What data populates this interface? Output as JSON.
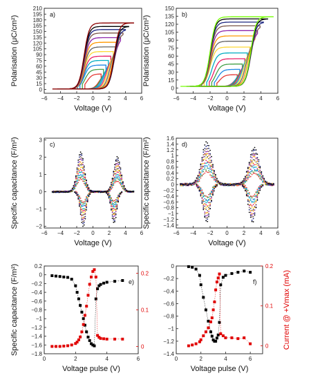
{
  "chart_data": [
    {
      "id": "a",
      "type": "line",
      "panel_label": "a)",
      "xlabel": "Voltage (V)",
      "ylabel": "Polarisation (μC/cm²)",
      "xlim": [
        -6,
        6
      ],
      "ylim": [
        -10,
        210
      ],
      "xticks": [
        -6,
        -4,
        -2,
        0,
        2,
        4,
        6
      ],
      "yticks": [
        0,
        15,
        30,
        45,
        60,
        75,
        90,
        105,
        120,
        135,
        150,
        165,
        180,
        195,
        210
      ],
      "loops": [
        {
          "vmax": 1.0,
          "pmax": 40,
          "color": "#e53935"
        },
        {
          "vmax": 1.3,
          "pmax": 52,
          "color": "#43a047"
        },
        {
          "vmax": 1.6,
          "pmax": 63,
          "color": "#1e88e5"
        },
        {
          "vmax": 1.9,
          "pmax": 75,
          "color": "#00acc1"
        },
        {
          "vmax": 2.2,
          "pmax": 86,
          "color": "#e91e63"
        },
        {
          "vmax": 2.5,
          "pmax": 98,
          "color": "#fdd835"
        },
        {
          "vmax": 2.8,
          "pmax": 110,
          "color": "#616161"
        },
        {
          "vmax": 3.1,
          "pmax": 122,
          "color": "#ff9800"
        },
        {
          "vmax": 3.4,
          "pmax": 134,
          "color": "#8e24aa"
        },
        {
          "vmax": 3.7,
          "pmax": 146,
          "color": "#795548"
        },
        {
          "vmax": 4.0,
          "pmax": 155,
          "color": "#1a237e"
        },
        {
          "vmax": 4.4,
          "pmax": 163,
          "color": "#000000"
        },
        {
          "vmax": 5.0,
          "pmax": 172,
          "color": "#8b0000"
        }
      ],
      "coercive": [
        -1.1,
        2.6
      ],
      "pmin": 1
    },
    {
      "id": "b",
      "type": "line",
      "panel_label": "b)",
      "xlabel": "Voltage (V)",
      "ylabel": "Polarisation (μC/cm²)",
      "xlim": [
        -6,
        6
      ],
      "ylim": [
        -10,
        150
      ],
      "xticks": [
        -6,
        -4,
        -2,
        0,
        2,
        4,
        6
      ],
      "yticks": [
        0,
        15,
        30,
        45,
        60,
        75,
        90,
        105,
        120,
        135,
        150
      ],
      "loops": [
        {
          "vmax": 1.2,
          "pmax": 25,
          "color": "#e53935"
        },
        {
          "vmax": 1.5,
          "pmax": 35,
          "color": "#1e88e5"
        },
        {
          "vmax": 1.8,
          "pmax": 45,
          "color": "#43a047"
        },
        {
          "vmax": 2.1,
          "pmax": 55,
          "color": "#e91e63"
        },
        {
          "vmax": 2.4,
          "pmax": 66,
          "color": "#00acc1"
        },
        {
          "vmax": 2.7,
          "pmax": 77,
          "color": "#fdd835"
        },
        {
          "vmax": 3.0,
          "pmax": 88,
          "color": "#616161"
        },
        {
          "vmax": 3.3,
          "pmax": 98,
          "color": "#ff9800"
        },
        {
          "vmax": 3.6,
          "pmax": 108,
          "color": "#8e24aa"
        },
        {
          "vmax": 3.9,
          "pmax": 117,
          "color": "#795548"
        },
        {
          "vmax": 4.3,
          "pmax": 124,
          "color": "#1a237e"
        },
        {
          "vmax": 4.8,
          "pmax": 130,
          "color": "#000000"
        },
        {
          "vmax": 5.5,
          "pmax": 134,
          "color": "#76ff03"
        }
      ],
      "coercive": [
        -2.0,
        2.8
      ],
      "pmin": 3
    },
    {
      "id": "c",
      "type": "scatter",
      "panel_label": "c)",
      "xlabel": "Voltage (V)",
      "ylabel": "Specific capacitance (F/m²)",
      "xlim": [
        -6,
        6
      ],
      "ylim": [
        -2.1,
        3.1
      ],
      "xticks": [
        -6,
        -4,
        -2,
        0,
        2,
        4,
        6
      ],
      "yticks": [
        -2,
        -1,
        0,
        1,
        2,
        3
      ],
      "peaks": [
        {
          "v": -1.5,
          "h": 2.3,
          "w": 0.45
        },
        {
          "v": 3.0,
          "h": 2.0,
          "w": 0.45
        }
      ],
      "neg_peaks": [
        {
          "v": -1.2,
          "h": -2.0,
          "w": 0.35
        },
        {
          "v": 2.6,
          "h": -1.8,
          "w": 0.35
        }
      ],
      "xrange": [
        -5,
        5
      ]
    },
    {
      "id": "d",
      "type": "scatter",
      "panel_label": "d)",
      "xlabel": "Voltage (V)",
      "ylabel": "Specific capacitance (F/m²)",
      "xlim": [
        -6,
        6
      ],
      "ylim": [
        -1.5,
        1.6
      ],
      "xticks": [
        -6,
        -4,
        -2,
        0,
        2,
        4,
        6
      ],
      "yticks": [
        -1.4,
        -1.2,
        -1.0,
        -0.8,
        -0.6,
        -0.4,
        -0.2,
        0.0,
        0.2,
        0.4,
        0.6,
        0.8,
        1.0,
        1.2,
        1.4,
        1.6
      ],
      "peaks": [
        {
          "v": -2.4,
          "h": 1.45,
          "w": 0.6
        },
        {
          "v": 3.2,
          "h": 1.25,
          "w": 0.6
        }
      ],
      "neg_peaks": [
        {
          "v": -2.4,
          "h": -1.3,
          "w": 0.45
        },
        {
          "v": 3.0,
          "h": -1.3,
          "w": 0.45
        }
      ],
      "xrange": [
        -5.5,
        5.5
      ]
    },
    {
      "id": "e",
      "type": "scatter",
      "panel_label": "e)",
      "xlabel": "Voltage pulse (V)",
      "ylabel": "Specific capacitance (F/m²)",
      "y2label": "",
      "xlim": [
        0,
        6
      ],
      "ylim": [
        -1.8,
        0.2
      ],
      "y2lim": [
        -0.02,
        0.22
      ],
      "xticks": [
        0,
        2,
        4,
        6
      ],
      "yticks": [
        -1.8,
        -1.6,
        -1.4,
        -1.2,
        -1.0,
        -0.8,
        -0.6,
        -0.4,
        -0.2,
        0.0,
        0.2
      ],
      "y2ticks": [
        0.0,
        0.1,
        0.2
      ],
      "series": [
        {
          "name": "capacitance",
          "axis": "left",
          "color": "#000000",
          "x": [
            0.5,
            0.75,
            1.0,
            1.25,
            1.5,
            1.75,
            2.0,
            2.1,
            2.2,
            2.3,
            2.4,
            2.5,
            2.6,
            2.7,
            2.8,
            2.9,
            3.0,
            3.1,
            3.2,
            3.3,
            3.4,
            3.5,
            3.6,
            3.8,
            4.0,
            4.5,
            5.0
          ],
          "y": [
            -0.02,
            -0.03,
            -0.04,
            -0.05,
            -0.06,
            -0.1,
            -0.25,
            -0.4,
            -0.55,
            -0.7,
            -0.85,
            -1.0,
            -1.15,
            -1.3,
            -1.42,
            -1.5,
            -1.57,
            -1.6,
            -1.62,
            -0.55,
            -0.32,
            -0.25,
            -0.22,
            -0.19,
            -0.17,
            -0.15,
            -0.13
          ]
        },
        {
          "name": "current",
          "axis": "right",
          "color": "#e00000",
          "x": [
            0.5,
            0.75,
            1.0,
            1.25,
            1.5,
            1.75,
            2.0,
            2.1,
            2.2,
            2.3,
            2.4,
            2.5,
            2.6,
            2.7,
            2.8,
            2.9,
            3.0,
            3.1,
            3.2,
            3.3,
            3.4,
            3.5,
            3.6,
            3.8,
            4.0,
            4.5,
            5.0
          ],
          "y": [
            0.0,
            0.0,
            0.0,
            0.001,
            0.002,
            0.004,
            0.008,
            0.012,
            0.018,
            0.026,
            0.04,
            0.06,
            0.085,
            0.11,
            0.14,
            0.17,
            0.19,
            0.205,
            0.21,
            0.19,
            0.03,
            0.025,
            0.022,
            0.021,
            0.02,
            0.02,
            0.02
          ]
        }
      ]
    },
    {
      "id": "f",
      "type": "scatter",
      "panel_label": "f)",
      "xlabel": "Voltage pulse (V)",
      "ylabel": "",
      "y2label": "Current @ +Vmax (mA)",
      "xlim": [
        0,
        7
      ],
      "ylim": [
        -1.4,
        0.0
      ],
      "y2lim": [
        -0.02,
        0.2
      ],
      "xticks": [
        0,
        2,
        4,
        6
      ],
      "yticks": [
        -1.4,
        -1.2,
        -1.0,
        -0.8,
        -0.6,
        -0.4,
        -0.2,
        0.0
      ],
      "y2ticks": [
        0.0,
        0.1,
        0.2
      ],
      "series": [
        {
          "name": "capacitance",
          "axis": "left",
          "color": "#000000",
          "x": [
            1.0,
            1.3,
            1.6,
            1.9,
            2.0,
            2.2,
            2.4,
            2.6,
            2.8,
            2.9,
            3.0,
            3.1,
            3.2,
            3.3,
            3.4,
            3.5,
            3.6,
            3.8,
            4.0,
            4.5,
            5.0,
            5.5,
            6.0
          ],
          "y": [
            -0.01,
            -0.02,
            -0.05,
            -0.15,
            -0.3,
            -0.5,
            -0.7,
            -0.88,
            -1.05,
            -1.12,
            -1.18,
            -1.2,
            -1.2,
            -1.15,
            -1.1,
            -0.9,
            -0.3,
            -0.18,
            -0.15,
            -0.12,
            -0.1,
            -0.08,
            -0.1
          ]
        },
        {
          "name": "current",
          "axis": "right",
          "color": "#e00000",
          "x": [
            1.0,
            1.3,
            1.6,
            1.9,
            2.0,
            2.2,
            2.4,
            2.6,
            2.8,
            2.9,
            3.0,
            3.1,
            3.2,
            3.3,
            3.4,
            3.5,
            3.6,
            3.8,
            4.0,
            4.5,
            5.0,
            5.5,
            6.0
          ],
          "y": [
            0.0,
            0.002,
            0.005,
            0.01,
            0.015,
            0.025,
            0.035,
            0.045,
            0.06,
            0.07,
            0.09,
            0.11,
            0.14,
            0.16,
            0.17,
            0.18,
            0.03,
            0.025,
            0.02,
            0.02,
            0.018,
            0.02,
            0.005
          ]
        }
      ]
    }
  ],
  "palette": [
    "#e53935",
    "#43a047",
    "#1e88e5",
    "#00acc1",
    "#e91e63",
    "#fdd835",
    "#616161",
    "#ff9800",
    "#8e24aa",
    "#795548",
    "#1a237e",
    "#000000",
    "#3f51b5"
  ]
}
